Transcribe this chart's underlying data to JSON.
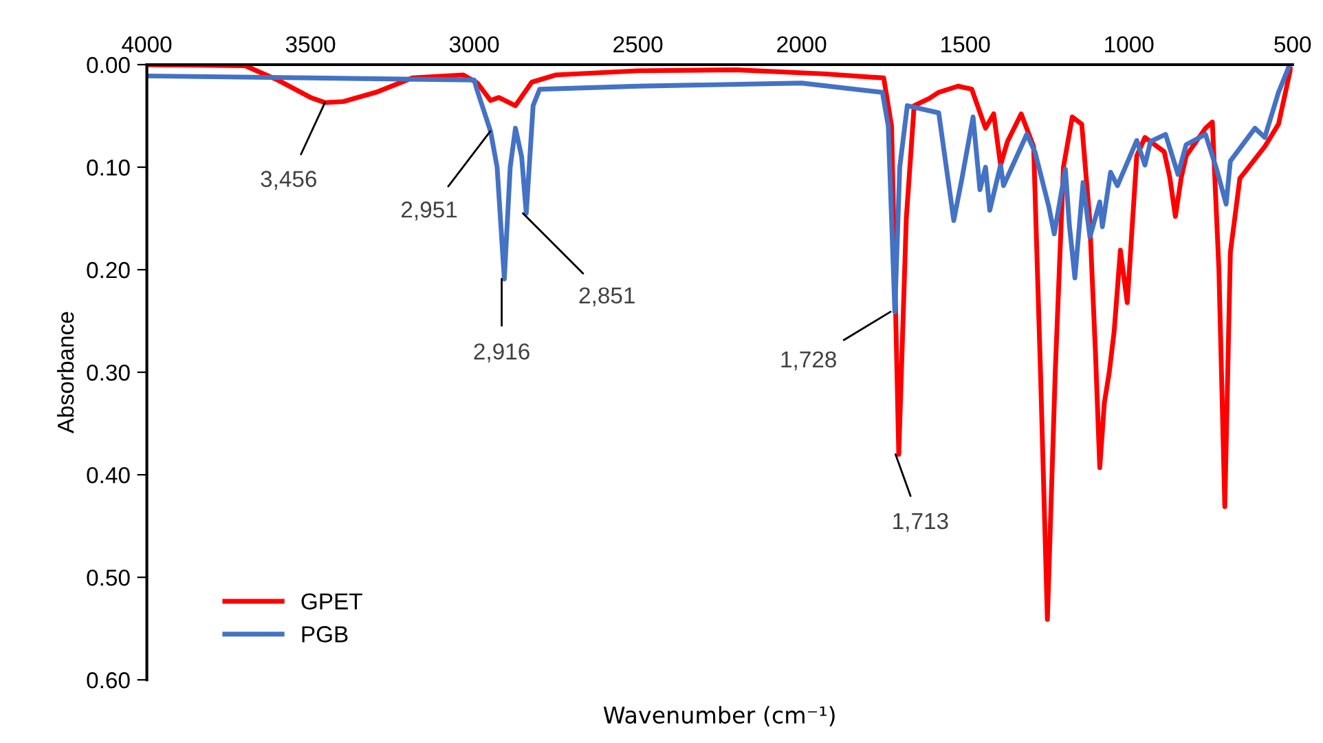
{
  "chart_data": {
    "type": "line",
    "xlabel": "Wavenumber (cm⁻¹)",
    "ylabel": "Absorbance",
    "xlim": [
      4000,
      500
    ],
    "xticks": [
      4000,
      3500,
      3000,
      2500,
      2000,
      1500,
      1000,
      500
    ],
    "ylim": [
      0.6,
      0
    ],
    "yticks": [
      {
        "value": 0,
        "label": "0.00"
      },
      {
        "value": 0.1,
        "label": "0.10"
      },
      {
        "value": 0.2,
        "label": "0.20"
      },
      {
        "value": 0.3,
        "label": "0.30"
      },
      {
        "value": 0.4,
        "label": "0.40"
      },
      {
        "value": 0.5,
        "label": "0.50"
      },
      {
        "value": 0.6,
        "label": "0.60"
      }
    ],
    "grid": false,
    "legend": "bottom left",
    "marker": "none",
    "line_style": "solid",
    "series": [
      {
        "name": "GPET",
        "color": "#ff0000",
        "x": [
          4000,
          3700,
          3600,
          3500,
          3456,
          3400,
          3300,
          3189,
          3034,
          2990,
          2950,
          2925,
          2874,
          2824,
          2750,
          2500,
          2200,
          1929,
          1749,
          1725,
          1703,
          1680,
          1656,
          1610,
          1581,
          1522,
          1480,
          1438,
          1413,
          1392,
          1371,
          1329,
          1291,
          1270,
          1249,
          1225,
          1200,
          1173,
          1144,
          1120,
          1102,
          1089,
          1075,
          1060,
          1045,
          1026,
          1005,
          976,
          951,
          892,
          875,
          858,
          840,
          825,
          766,
          745,
          725,
          707,
          690,
          661,
          585,
          543,
          506
        ],
        "values": [
          0.0,
          0.001,
          0.015,
          0.032,
          0.037,
          0.036,
          0.027,
          0.013,
          0.01,
          0.018,
          0.035,
          0.032,
          0.04,
          0.017,
          0.01,
          0.006,
          0.005,
          0.009,
          0.013,
          0.06,
          0.38,
          0.15,
          0.04,
          0.033,
          0.027,
          0.021,
          0.024,
          0.062,
          0.048,
          0.098,
          0.075,
          0.048,
          0.08,
          0.3,
          0.541,
          0.3,
          0.1,
          0.051,
          0.058,
          0.15,
          0.282,
          0.393,
          0.33,
          0.3,
          0.26,
          0.181,
          0.232,
          0.089,
          0.071,
          0.085,
          0.11,
          0.148,
          0.11,
          0.089,
          0.062,
          0.056,
          0.2,
          0.431,
          0.183,
          0.111,
          0.08,
          0.058,
          0.004
        ]
      },
      {
        "name": "PGB",
        "color": "#4472c4",
        "x": [
          4000,
          3500,
          3000,
          2992,
          2950,
          2930,
          2908,
          2890,
          2874,
          2855,
          2841,
          2820,
          2800,
          2500,
          2000,
          1753,
          1735,
          1715,
          1700,
          1677,
          1581,
          1535,
          1510,
          1476,
          1455,
          1438,
          1425,
          1392,
          1383,
          1312,
          1287,
          1245,
          1228,
          1194,
          1182,
          1165,
          1140,
          1119,
          1089,
          1081,
          1056,
          1035,
          976,
          951,
          934,
          888,
          850,
          825,
          766,
          732,
          703,
          690,
          615,
          585,
          543,
          510
        ],
        "values": [
          0.011,
          0.013,
          0.015,
          0.024,
          0.065,
          0.1,
          0.209,
          0.1,
          0.062,
          0.09,
          0.145,
          0.04,
          0.024,
          0.021,
          0.018,
          0.027,
          0.06,
          0.241,
          0.1,
          0.04,
          0.047,
          0.152,
          0.111,
          0.051,
          0.122,
          0.1,
          0.142,
          0.098,
          0.118,
          0.068,
          0.085,
          0.138,
          0.165,
          0.102,
          0.156,
          0.208,
          0.115,
          0.168,
          0.134,
          0.158,
          0.105,
          0.118,
          0.074,
          0.098,
          0.075,
          0.068,
          0.107,
          0.078,
          0.068,
          0.102,
          0.136,
          0.094,
          0.062,
          0.071,
          0.027,
          0.001
        ]
      }
    ],
    "annotations": [
      {
        "text": "3,456",
        "x": 3456,
        "y": 0.037
      },
      {
        "text": "2,951",
        "x": 2951,
        "y": 0.065
      },
      {
        "text": "2,916",
        "x": 2916,
        "y": 0.209
      },
      {
        "text": "2,851",
        "x": 2851,
        "y": 0.145
      },
      {
        "text": "1,728",
        "x": 1728,
        "y": 0.241
      },
      {
        "text": "1,713",
        "x": 1713,
        "y": 0.38
      }
    ]
  }
}
